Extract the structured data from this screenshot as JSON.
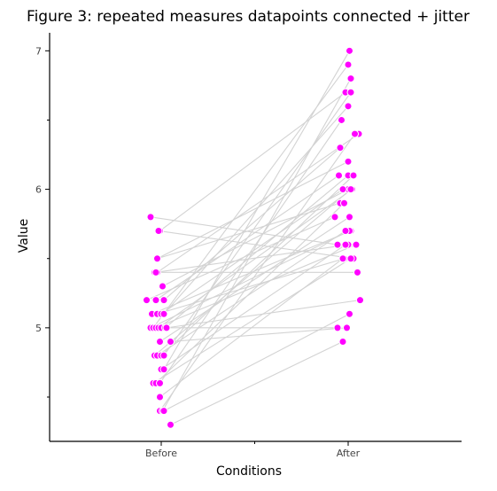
{
  "chart_data": {
    "type": "scatter",
    "title": "Figure 3: repeated measures datapoints connected + jitter",
    "xlabel": "Conditions",
    "ylabel": "Value",
    "categories": [
      "Before",
      "After"
    ],
    "ylim": [
      4.18,
      7.13
    ],
    "yticks": [
      5,
      6,
      7
    ],
    "yticks_minor": [
      4.5,
      5.5,
      6.5
    ],
    "grid": false,
    "legend": "none",
    "point_color": "#ff00ff",
    "line_color": "#d3d3d3",
    "pairs": [
      {
        "before": 5.8,
        "after": 5.6,
        "jb": -0.08,
        "ja": -0.08
      },
      {
        "before": 5.7,
        "after": 6.7,
        "jb": -0.01,
        "ja": -0.02
      },
      {
        "before": 5.7,
        "after": 5.5,
        "jb": -0.02,
        "ja": 0.04
      },
      {
        "before": 5.5,
        "after": 6.2,
        "jb": -0.03,
        "ja": 0.0
      },
      {
        "before": 5.5,
        "after": 5.9,
        "jb": -0.03,
        "ja": -0.06
      },
      {
        "before": 5.4,
        "after": 5.4,
        "jb": -0.05,
        "ja": 0.07
      },
      {
        "before": 5.4,
        "after": 6.4,
        "jb": -0.03,
        "ja": 0.08
      },
      {
        "before": 5.4,
        "after": 5.6,
        "jb": -0.04,
        "ja": 0.0
      },
      {
        "before": 5.3,
        "after": 6.0,
        "jb": 0.01,
        "ja": 0.0
      },
      {
        "before": 5.2,
        "after": 5.8,
        "jb": -0.11,
        "ja": -0.1
      },
      {
        "before": 5.2,
        "after": 6.1,
        "jb": -0.04,
        "ja": -0.07
      },
      {
        "before": 5.2,
        "after": 6.3,
        "jb": 0.02,
        "ja": -0.06
      },
      {
        "before": 5.1,
        "after": 5.7,
        "jb": -0.07,
        "ja": 0.02
      },
      {
        "before": 5.1,
        "after": 5.5,
        "jb": -0.03,
        "ja": -0.03
      },
      {
        "before": 5.1,
        "after": 6.0,
        "jb": 0.0,
        "ja": -0.04
      },
      {
        "before": 5.1,
        "after": 6.6,
        "jb": 0.02,
        "ja": 0.0
      },
      {
        "before": 5.0,
        "after": 5.7,
        "jb": -0.08,
        "ja": 0.01
      },
      {
        "before": 5.0,
        "after": 6.9,
        "jb": -0.06,
        "ja": 0.0
      },
      {
        "before": 5.0,
        "after": 5.6,
        "jb": -0.04,
        "ja": 0.06
      },
      {
        "before": 5.0,
        "after": 6.0,
        "jb": -0.02,
        "ja": 0.03
      },
      {
        "before": 5.0,
        "after": 5.0,
        "jb": 0.0,
        "ja": -0.08
      },
      {
        "before": 5.0,
        "after": 6.1,
        "jb": 0.03,
        "ja": 0.0
      },
      {
        "before": 5.0,
        "after": 5.2,
        "jb": 0.04,
        "ja": 0.09
      },
      {
        "before": 4.9,
        "after": 5.8,
        "jb": -0.01,
        "ja": 0.01
      },
      {
        "before": 4.9,
        "after": 5.0,
        "jb": 0.07,
        "ja": -0.01
      },
      {
        "before": 4.8,
        "after": 6.0,
        "jb": -0.05,
        "ja": 0.02
      },
      {
        "before": 4.8,
        "after": 5.7,
        "jb": -0.03,
        "ja": -0.02
      },
      {
        "before": 4.8,
        "after": 6.1,
        "jb": 0.0,
        "ja": 0.04
      },
      {
        "before": 4.8,
        "after": 6.7,
        "jb": 0.02,
        "ja": 0.02
      },
      {
        "before": 4.7,
        "after": 5.6,
        "jb": 0.0,
        "ja": -0.02
      },
      {
        "before": 4.7,
        "after": 7.0,
        "jb": 0.02,
        "ja": 0.01
      },
      {
        "before": 4.6,
        "after": 5.5,
        "jb": -0.06,
        "ja": 0.02
      },
      {
        "before": 4.6,
        "after": 5.9,
        "jb": -0.04,
        "ja": -0.03
      },
      {
        "before": 4.6,
        "after": 6.5,
        "jb": -0.01,
        "ja": -0.05
      },
      {
        "before": 4.5,
        "after": 5.5,
        "jb": -0.01,
        "ja": -0.04
      },
      {
        "before": 4.4,
        "after": 6.4,
        "jb": -0.01,
        "ja": 0.05
      },
      {
        "before": 4.4,
        "after": 6.8,
        "jb": 0.01,
        "ja": 0.02
      },
      {
        "before": 4.4,
        "after": 5.1,
        "jb": 0.02,
        "ja": 0.01
      },
      {
        "before": 4.3,
        "after": 4.9,
        "jb": 0.07,
        "ja": -0.04
      }
    ]
  }
}
